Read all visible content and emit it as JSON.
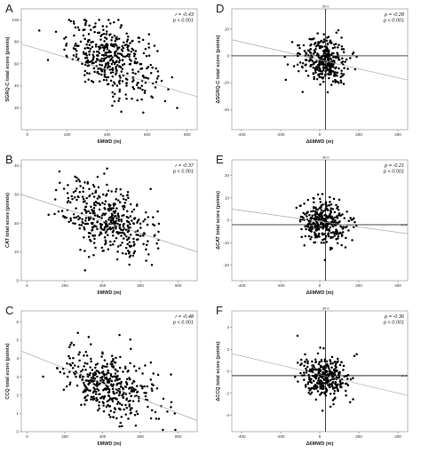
{
  "chart_data": [
    {
      "id": "A",
      "type": "scatter",
      "panel_label": "A",
      "xlabel": "6MWD (m)",
      "ylabel": "SGRQ-C total score (points)",
      "xticks": [
        0,
        200,
        400,
        600,
        800
      ],
      "yticks": [
        20,
        40,
        60,
        80,
        100
      ],
      "xlim": [
        -30,
        850
      ],
      "ylim": [
        0,
        110
      ],
      "stats": [
        "r = -0.43",
        "p < 0.001"
      ],
      "trend": {
        "x": [
          -30,
          850
        ],
        "y": [
          78,
          30
        ]
      },
      "cloud": {
        "x_center": 420,
        "x_spread": 110,
        "y_center": 65,
        "y_spread": 15,
        "slope": -0.055,
        "n": 420,
        "x_min": 60,
        "x_max": 760,
        "y_min": 5,
        "y_max": 100
      },
      "refs": []
    },
    {
      "id": "D",
      "type": "scatter",
      "panel_label": "D",
      "xlabel": "Δ6MWD (m)",
      "ylabel": "ΔSGRQ-C total score (points)",
      "xticks": [
        -400,
        -200,
        0,
        200,
        400
      ],
      "yticks": [
        -40,
        -20,
        0,
        20
      ],
      "xlim": [
        -450,
        450
      ],
      "ylim": [
        -55,
        35
      ],
      "stats": [
        "p = -0.28",
        "p < 0.001"
      ],
      "trend": {
        "x": [
          -450,
          450
        ],
        "y": [
          12,
          -18
        ]
      },
      "cloud": {
        "x_center": 20,
        "x_spread": 60,
        "y_center": -3,
        "y_spread": 9,
        "slope": -0.03,
        "n": 330,
        "x_min": -260,
        "x_max": 330,
        "y_min": -45,
        "y_max": 28
      },
      "refs": [
        {
          "axis": "v",
          "value": 30,
          "label": "30.0"
        },
        {
          "axis": "h",
          "value": 0,
          "label": ""
        }
      ]
    },
    {
      "id": "B",
      "type": "scatter",
      "panel_label": "B",
      "xlabel": "6MWD (m)",
      "ylabel": "CAT total score (points)",
      "xticks": [
        0,
        200,
        400,
        600,
        800
      ],
      "yticks": [
        0,
        10,
        20,
        30,
        40
      ],
      "xlim": [
        -30,
        900
      ],
      "ylim": [
        0,
        42
      ],
      "stats": [
        "r = -0.37",
        "p < 0.001"
      ],
      "trend": {
        "x": [
          -30,
          900
        ],
        "y": [
          30,
          10
        ]
      },
      "cloud": {
        "x_center": 430,
        "x_spread": 120,
        "y_center": 21,
        "y_spread": 6,
        "slope": -0.02,
        "n": 430,
        "x_min": 40,
        "x_max": 820,
        "y_min": 2,
        "y_max": 39
      },
      "refs": []
    },
    {
      "id": "E",
      "type": "scatter",
      "panel_label": "E",
      "xlabel": "Δ6MWD (m)",
      "ylabel": "ΔCAT total score (points)",
      "xticks": [
        -400,
        -200,
        0,
        200,
        400
      ],
      "yticks": [
        -20,
        -10,
        0,
        10,
        20
      ],
      "xlim": [
        -450,
        450
      ],
      "ylim": [
        -27,
        27
      ],
      "stats": [
        "p = -0.21",
        "p < 0.001"
      ],
      "trend": {
        "x": [
          -450,
          450
        ],
        "y": [
          5,
          -6
        ]
      },
      "cloud": {
        "x_center": 20,
        "x_spread": 60,
        "y_center": -1,
        "y_spread": 5,
        "slope": -0.012,
        "n": 330,
        "x_min": -300,
        "x_max": 330,
        "y_min": -22,
        "y_max": 21
      },
      "refs": [
        {
          "axis": "v",
          "value": 30,
          "label": "30.0"
        },
        {
          "axis": "h",
          "value": -2,
          "label": "-2.0"
        }
      ]
    },
    {
      "id": "C",
      "type": "scatter",
      "panel_label": "C",
      "xlabel": "6MWD (m)",
      "ylabel": "CCQ total score (points)",
      "xticks": [
        0,
        200,
        400,
        600,
        800
      ],
      "yticks": [
        0,
        1,
        2,
        3,
        4,
        5,
        6
      ],
      "xlim": [
        -30,
        900
      ],
      "ylim": [
        0,
        6.6
      ],
      "stats": [
        "r = -0.48",
        "p < 0.001"
      ],
      "trend": {
        "x": [
          -30,
          900
        ],
        "y": [
          4.4,
          0.6
        ]
      },
      "cloud": {
        "x_center": 430,
        "x_spread": 120,
        "y_center": 2.6,
        "y_spread": 0.9,
        "slope": -0.0035,
        "n": 420,
        "x_min": 40,
        "x_max": 830,
        "y_min": 0.1,
        "y_max": 5.9
      },
      "refs": []
    },
    {
      "id": "F",
      "type": "scatter",
      "panel_label": "F",
      "xlabel": "Δ6MWD (m)",
      "ylabel": "ΔCCQ total score (points)",
      "xticks": [
        -400,
        -200,
        0,
        200,
        400
      ],
      "yticks": [
        -4,
        -2,
        0,
        2,
        4
      ],
      "xlim": [
        -450,
        450
      ],
      "ylim": [
        -5.5,
        5.5
      ],
      "stats": [
        "p = -0.36",
        "p < 0.001"
      ],
      "trend": {
        "x": [
          -450,
          450
        ],
        "y": [
          1.6,
          -2.2
        ]
      },
      "cloud": {
        "x_center": 20,
        "x_spread": 60,
        "y_center": -0.4,
        "y_spread": 0.9,
        "slope": -0.003,
        "n": 330,
        "x_min": -300,
        "x_max": 330,
        "y_min": -4.8,
        "y_max": 3.8
      },
      "refs": [
        {
          "axis": "v",
          "value": 30,
          "label": "30.0"
        },
        {
          "axis": "h",
          "value": -0.4,
          "label": "-0.4"
        }
      ]
    }
  ]
}
